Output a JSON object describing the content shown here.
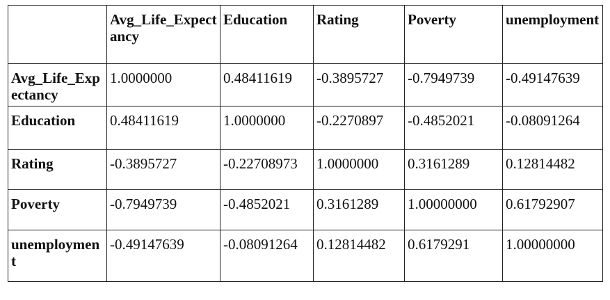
{
  "table": {
    "columns": [
      "",
      "Avg_Life_Expectancy",
      "Education",
      "Rating",
      "Poverty",
      "unemployment"
    ],
    "rows": [
      {
        "label": "Avg_Life_Expectancy",
        "values": [
          "1.0000000",
          "0.48411619",
          "-0.3895727",
          "-0.7949739",
          "-0.49147639"
        ]
      },
      {
        "label": "Education",
        "values": [
          "0.48411619",
          "1.0000000",
          "-0.2270897",
          "-0.4852021",
          "-0.08091264"
        ]
      },
      {
        "label": "Rating",
        "values": [
          "-0.3895727",
          "-0.22708973",
          "1.0000000",
          "0.3161289",
          "0.12814482"
        ]
      },
      {
        "label": "Poverty",
        "values": [
          "-0.7949739",
          "-0.4852021",
          "0.3161289",
          "1.00000000",
          "0.61792907"
        ]
      },
      {
        "label": "unemployment",
        "values": [
          "-0.49147639",
          "-0.08091264",
          "0.12814482",
          "0.6179291",
          "1.00000000"
        ]
      }
    ]
  }
}
